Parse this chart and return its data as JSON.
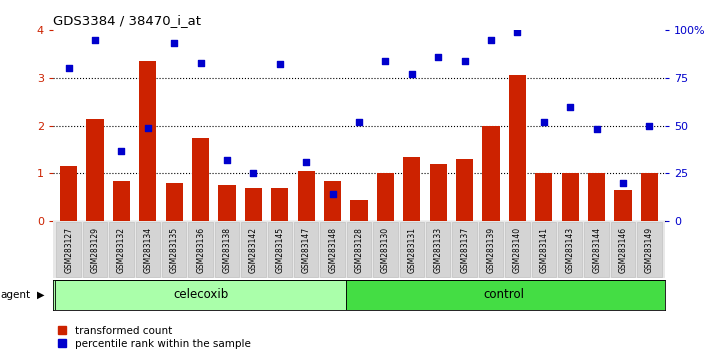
{
  "title": "GDS3384 / 38470_i_at",
  "categories": [
    "GSM283127",
    "GSM283129",
    "GSM283132",
    "GSM283134",
    "GSM283135",
    "GSM283136",
    "GSM283138",
    "GSM283142",
    "GSM283145",
    "GSM283147",
    "GSM283148",
    "GSM283128",
    "GSM283130",
    "GSM283131",
    "GSM283133",
    "GSM283137",
    "GSM283139",
    "GSM283140",
    "GSM283141",
    "GSM283143",
    "GSM283144",
    "GSM283146",
    "GSM283149"
  ],
  "bar_values": [
    1.15,
    2.15,
    0.85,
    3.35,
    0.8,
    1.75,
    0.75,
    0.7,
    0.7,
    1.05,
    0.85,
    0.45,
    1.0,
    1.35,
    1.2,
    1.3,
    2.0,
    3.05,
    1.0,
    1.0,
    1.0,
    0.65,
    1.0
  ],
  "scatter_values": [
    80,
    95,
    37,
    49,
    93,
    83,
    32,
    25,
    82,
    31,
    14,
    52,
    84,
    77,
    86,
    84,
    95,
    99,
    52,
    60,
    48,
    20,
    50
  ],
  "celecoxib_count": 11,
  "control_count": 12,
  "bar_color": "#cc2200",
  "scatter_color": "#0000cc",
  "agent_label": "agent",
  "celecoxib_label": "celecoxib",
  "control_label": "control",
  "celecoxib_color": "#aaffaa",
  "control_color": "#44dd44",
  "legend_bar": "transformed count",
  "legend_scatter": "percentile rank within the sample",
  "ylim_left": [
    0,
    4
  ],
  "ylim_right": [
    0,
    100
  ],
  "yticks_left": [
    0,
    1,
    2,
    3,
    4
  ],
  "yticks_right": [
    0,
    25,
    50,
    75,
    100
  ],
  "ytick_labels_right": [
    "0",
    "25",
    "50",
    "75",
    "100%"
  ],
  "hlines": [
    1,
    2,
    3
  ]
}
